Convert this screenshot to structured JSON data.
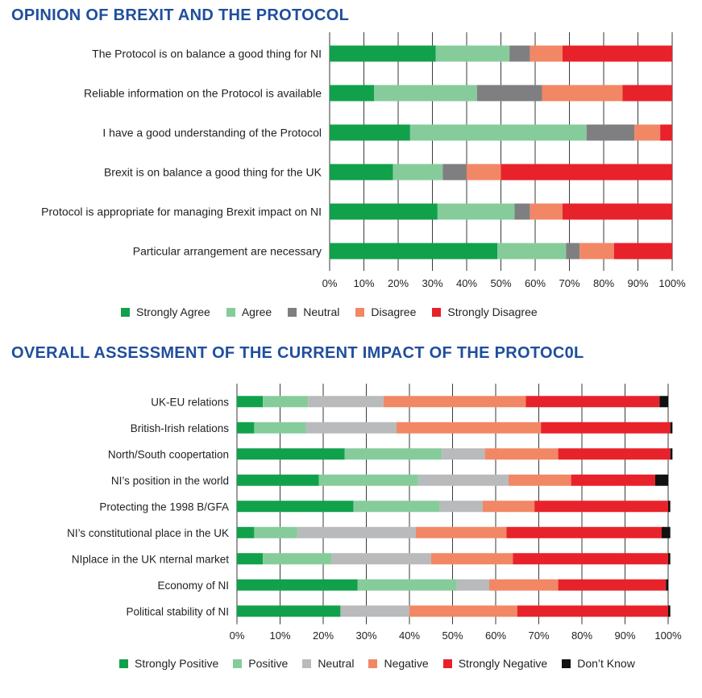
{
  "chart_data": [
    {
      "type": "bar",
      "orientation": "horizontal",
      "stacked": true,
      "title": "OPINION OF BREXIT AND THE PROTOCOL",
      "categories": [
        "The Protocol is on balance a good thing for NI",
        "Reliable information on the Protocol is available",
        "I have a good understanding of the Protocol",
        "Brexit is on balance a good thing for the UK",
        "Protocol is appropriate for managing Brexit impact on NI",
        "Particular arrangement are necessary"
      ],
      "series": [
        {
          "name": "Strongly Agree",
          "color": "#11a14b",
          "values": [
            31,
            13,
            23.5,
            18.5,
            31.5,
            49
          ]
        },
        {
          "name": "Agree",
          "color": "#86cc9b",
          "values": [
            21.5,
            30,
            51.5,
            14.5,
            22.5,
            20
          ]
        },
        {
          "name": "Neutral",
          "color": "#7f7f82",
          "values": [
            6,
            19,
            14,
            7,
            4.5,
            4
          ]
        },
        {
          "name": "Disagree",
          "color": "#f28766",
          "values": [
            9.5,
            23.5,
            7.5,
            10,
            9.5,
            10
          ]
        },
        {
          "name": "Strongly Disagree",
          "color": "#e8222a",
          "values": [
            32,
            14.5,
            3.5,
            50,
            32,
            17
          ]
        }
      ],
      "xticks": [
        "0%",
        "10%",
        "20%",
        "30%",
        "40%",
        "50%",
        "60%",
        "70%",
        "80%",
        "90%",
        "100%"
      ],
      "xlim": [
        0,
        100
      ],
      "grid": true,
      "legend": "bottom"
    },
    {
      "type": "bar",
      "orientation": "horizontal",
      "stacked": true,
      "title": "OVERALL ASSESSMENT OF THE CURRENT IMPACT OF THE PROTOC0L",
      "categories": [
        "UK-EU relations",
        "British-Irish relations",
        "North/South coopertation",
        "NI’s position in the world",
        "Protecting the 1998 B/GFA",
        "NI’s constitutional place in the UK",
        "NIplace  in the UK nternal market",
        "Economy of NI",
        "Political stability of NI"
      ],
      "series": [
        {
          "name": "Strongly Positive",
          "color": "#11a14b",
          "values": [
            6,
            4,
            25,
            19,
            27,
            4,
            6,
            28,
            24
          ]
        },
        {
          "name": "Positive",
          "color": "#86cc9b",
          "values": [
            10.5,
            12,
            22.5,
            23,
            20,
            10,
            16,
            23,
            0
          ]
        },
        {
          "name": "Neutral",
          "color": "#b9babc",
          "values": [
            17.5,
            21,
            10,
            21,
            10,
            27.5,
            23,
            7.5,
            16
          ]
        },
        {
          "name": "Negative",
          "color": "#f28766",
          "values": [
            33,
            33.5,
            17,
            14.5,
            12,
            21,
            19,
            16,
            25
          ]
        },
        {
          "name": "Strongly Negative",
          "color": "#e8222a",
          "values": [
            31,
            30,
            26,
            19.5,
            31,
            36,
            36,
            25,
            35
          ]
        },
        {
          "name": "Don’t Know",
          "color": "#111111",
          "values": [
            2,
            0.5,
            0.5,
            3,
            0.5,
            2,
            0.5,
            0.5,
            0.5
          ]
        }
      ],
      "xticks": [
        "0%",
        "10%",
        "20%",
        "30%",
        "40%",
        "50%",
        "60%",
        "70%",
        "80%",
        "90%",
        "100%"
      ],
      "xlim": [
        0,
        100
      ],
      "grid": true,
      "legend": "bottom"
    }
  ]
}
